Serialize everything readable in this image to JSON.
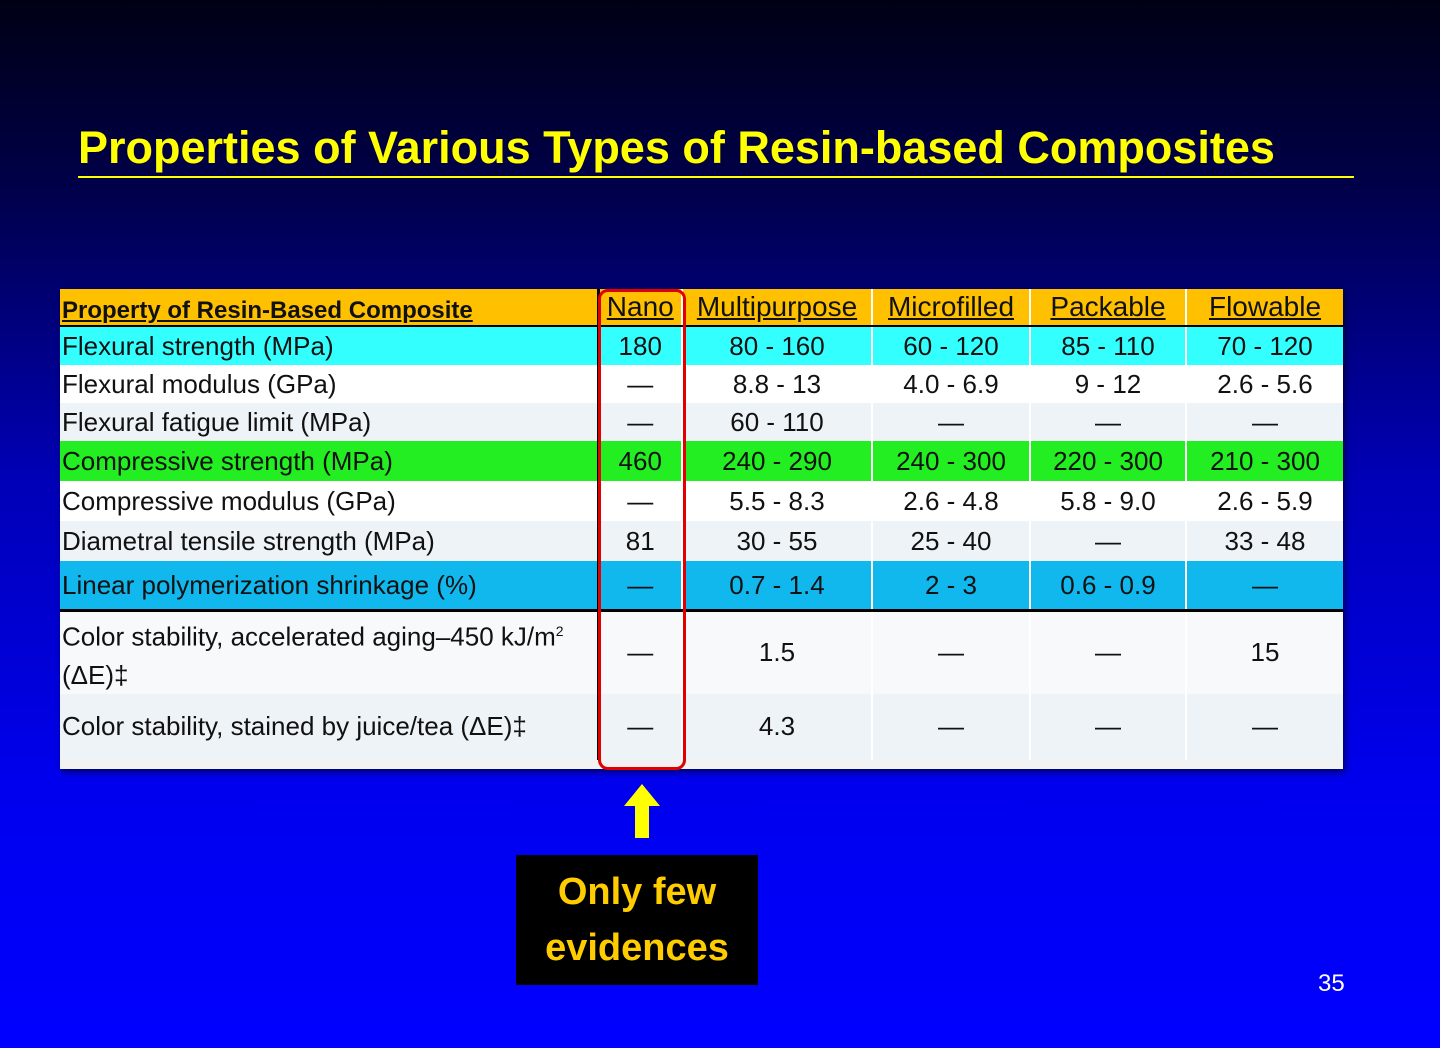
{
  "title": "Properties of Various Types of Resin-based Composites",
  "table": {
    "header": [
      "Property of Resin-Based Composite",
      "Nano",
      "Multipurpose",
      "Microfilled",
      "Packable",
      "Flowable"
    ],
    "rows": [
      [
        "Flexural strength (MPa)",
        "180",
        "80 - 160",
        "60 - 120",
        "85 - 110",
        "70 - 120"
      ],
      [
        "Flexural modulus (GPa)",
        "—",
        "8.8 - 13",
        "4.0 - 6.9",
        "9 - 12",
        "2.6 - 5.6"
      ],
      [
        "Flexural fatigue limit (MPa)",
        "—",
        "60 - 110",
        "—",
        "—",
        "—"
      ],
      [
        "Compressive strength (MPa)",
        "460",
        "240 - 290",
        "240 - 300",
        "220 - 300",
        "210 - 300"
      ],
      [
        "Compressive modulus (GPa)",
        "—",
        "5.5 - 8.3",
        "2.6 - 4.8",
        "5.8 - 9.0",
        "2.6 - 5.9"
      ],
      [
        "Diametral tensile strength (MPa)",
        "81",
        "30 - 55",
        "25 - 40",
        "—",
        "33 - 48"
      ],
      [
        "Linear polymerization shrinkage (%)",
        "—",
        "0.7 - 1.4",
        "2 - 3",
        "0.6 - 0.9",
        "—"
      ],
      [
        "Color stability, accelerated aging–450 kJ/m",
        "—",
        "1.5",
        "—",
        "—",
        "15"
      ],
      [
        "Color stability, stained by juice/tea (ΔE)‡",
        "—",
        "4.3",
        "—",
        "—",
        "—"
      ]
    ],
    "row7_suffix_sup": "2",
    "row7_suffix_tail": " (ΔE)‡",
    "row_colors": {
      "header": "#ffc000",
      "flexural_strength": "#33ffff",
      "compressive_strength": "#22ee22",
      "shrinkage": "#11b8ee"
    }
  },
  "note": {
    "line1": "Only few",
    "line2": "evidences",
    "arrow_icon": "up-arrow-icon"
  },
  "slide_number": "35"
}
